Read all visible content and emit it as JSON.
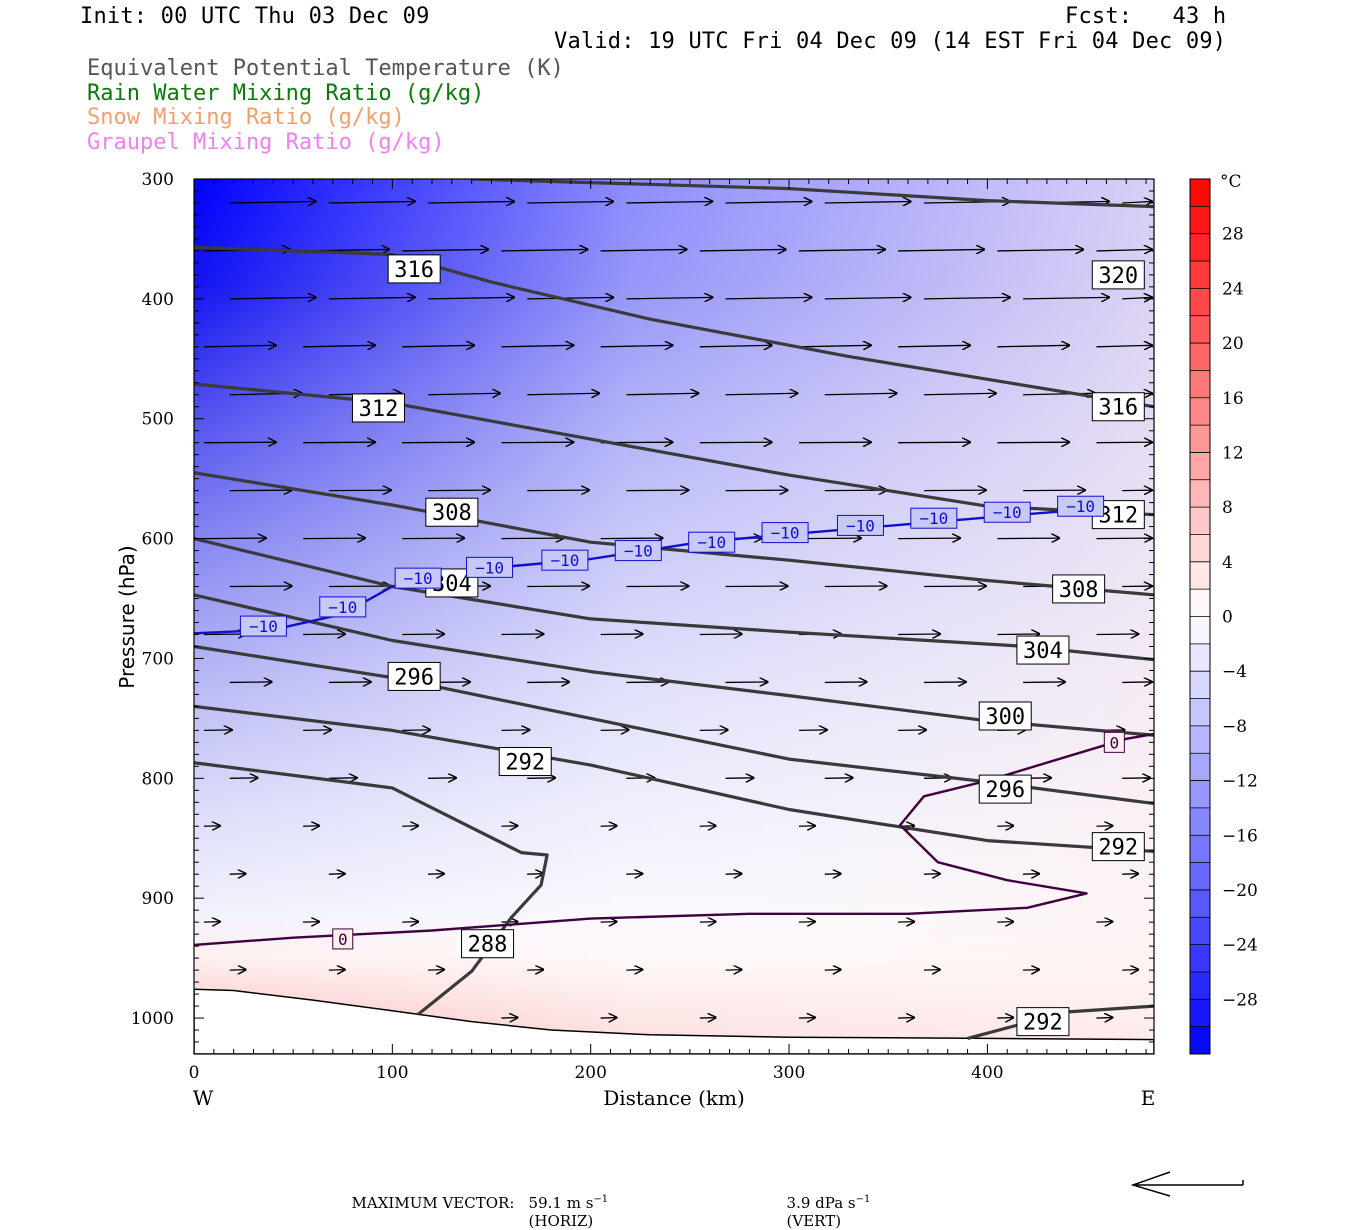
{
  "header": {
    "init": "Init: 00 UTC Thu 03 Dec 09",
    "fcst": "Fcst:   43 h",
    "valid": "Valid: 19 UTC Fri 04 Dec 09 (14 EST Fri 04 Dec 09)"
  },
  "legend": [
    {
      "label": "Equivalent Potential Temperature (K)",
      "color": "#555555"
    },
    {
      "label": "Rain Water Mixing Ratio (g/kg)",
      "color": "#0a7a0a"
    },
    {
      "label": "Snow Mixing Ratio (g/kg)",
      "color": "#f0a070"
    },
    {
      "label": "Graupel Mixing Ratio (g/kg)",
      "color": "#ee82ee"
    }
  ],
  "chart_data": {
    "type": "cross-section contour",
    "xlabel": "Distance (km)",
    "ylabel": "Pressure (hPa)",
    "xlim": [
      0,
      484
    ],
    "ylim": [
      300,
      1030
    ],
    "x_ticks": [
      0,
      100,
      200,
      300,
      400
    ],
    "y_ticks": [
      300,
      400,
      500,
      600,
      700,
      800,
      900,
      1000
    ],
    "x_end_labels": {
      "left": "W",
      "right": "E"
    },
    "colorbar": {
      "unit": "°C",
      "tick_labels": [
        "28",
        "24",
        "20",
        "16",
        "12",
        "8",
        "4",
        "0",
        "−4",
        "−8",
        "−12",
        "−16",
        "−20",
        "−24",
        "−28"
      ],
      "tick_values": [
        28,
        24,
        20,
        16,
        12,
        8,
        4,
        0,
        -4,
        -8,
        -12,
        -16,
        -20,
        -24,
        -28
      ],
      "range": [
        -32,
        32
      ]
    },
    "theta_e_contours": [
      {
        "label": "320",
        "points": [
          [
            140,
            300
          ],
          [
            300,
            308
          ],
          [
            400,
            318
          ],
          [
            484,
            323
          ]
        ]
      },
      {
        "label": "316",
        "points": [
          [
            0,
            357
          ],
          [
            100,
            363
          ],
          [
            150,
            386
          ],
          [
            230,
            417
          ],
          [
            330,
            448
          ],
          [
            484,
            490
          ]
        ]
      },
      {
        "label": "312",
        "points": [
          [
            0,
            471
          ],
          [
            100,
            487
          ],
          [
            200,
            517
          ],
          [
            300,
            547
          ],
          [
            400,
            573
          ],
          [
            484,
            580
          ]
        ]
      },
      {
        "label": "308",
        "points": [
          [
            0,
            545
          ],
          [
            100,
            572
          ],
          [
            200,
            603
          ],
          [
            300,
            618
          ],
          [
            400,
            635
          ],
          [
            484,
            647
          ]
        ]
      },
      {
        "label": "304",
        "points": [
          [
            0,
            600
          ],
          [
            100,
            640
          ],
          [
            200,
            667
          ],
          [
            300,
            678
          ],
          [
            420,
            690
          ],
          [
            484,
            701
          ]
        ]
      },
      {
        "label": "300",
        "points": [
          [
            0,
            647
          ],
          [
            100,
            685
          ],
          [
            200,
            711
          ],
          [
            300,
            731
          ],
          [
            400,
            752
          ],
          [
            484,
            764
          ]
        ]
      },
      {
        "label": "296",
        "points": [
          [
            0,
            690
          ],
          [
            100,
            716
          ],
          [
            200,
            750
          ],
          [
            300,
            784
          ],
          [
            400,
            803
          ],
          [
            484,
            821
          ]
        ]
      },
      {
        "label": "292",
        "points": [
          [
            0,
            740
          ],
          [
            100,
            760
          ],
          [
            200,
            789
          ],
          [
            300,
            826
          ],
          [
            400,
            852
          ],
          [
            484,
            861
          ]
        ]
      },
      {
        "label": "288",
        "points": [
          [
            0,
            787
          ],
          [
            100,
            808
          ],
          [
            165,
            862
          ],
          [
            178,
            864
          ],
          [
            175,
            889
          ],
          [
            160,
            916
          ],
          [
            140,
            961
          ],
          [
            113,
            997
          ]
        ]
      },
      {
        "label": "292",
        "points": [
          [
            390,
            1017
          ],
          [
            440,
            995
          ],
          [
            484,
            990
          ]
        ]
      }
    ],
    "theta_e_label_positions": [
      {
        "label": "320",
        "x": 466,
        "y": 380
      },
      {
        "label": "316",
        "x": 111,
        "y": 375
      },
      {
        "label": "316",
        "x": 466,
        "y": 490
      },
      {
        "label": "312",
        "x": 93,
        "y": 491
      },
      {
        "label": "312",
        "x": 466,
        "y": 580
      },
      {
        "label": "308",
        "x": 130,
        "y": 578
      },
      {
        "label": "308",
        "x": 446,
        "y": 642
      },
      {
        "label": "304",
        "x": 130,
        "y": 637
      },
      {
        "label": "304",
        "x": 428,
        "y": 693
      },
      {
        "label": "300",
        "x": 409,
        "y": 748
      },
      {
        "label": "296",
        "x": 111,
        "y": 715
      },
      {
        "label": "296",
        "x": 409,
        "y": 809
      },
      {
        "label": "292",
        "x": 167,
        "y": 786
      },
      {
        "label": "292",
        "x": 466,
        "y": 857
      },
      {
        "label": "292",
        "x": 428,
        "y": 1003
      },
      {
        "label": "288",
        "x": 148,
        "y": 938
      }
    ],
    "isotherms": [
      {
        "label": "−10",
        "color": "#1010cc",
        "points": [
          [
            0,
            679
          ],
          [
            40,
            676
          ],
          [
            75,
            663
          ],
          [
            100,
            640
          ],
          [
            140,
            626
          ],
          [
            200,
            617
          ],
          [
            255,
            603
          ],
          [
            310,
            595
          ],
          [
            360,
            588
          ],
          [
            410,
            581
          ],
          [
            470,
            573
          ]
        ]
      },
      {
        "label": "0",
        "color": "#400040",
        "points": [
          [
            0,
            939
          ],
          [
            50,
            933
          ],
          [
            120,
            927
          ],
          [
            200,
            917
          ],
          [
            280,
            913
          ],
          [
            360,
            913
          ],
          [
            420,
            908
          ],
          [
            450,
            896
          ],
          [
            410,
            885
          ],
          [
            375,
            870
          ],
          [
            356,
            839
          ],
          [
            368,
            815
          ],
          [
            400,
            802
          ],
          [
            440,
            782
          ],
          [
            470,
            767
          ],
          [
            484,
            763
          ]
        ]
      }
    ],
    "isotherm_label_positions": [
      {
        "label": "−10",
        "x": 35,
        "y": 673
      },
      {
        "label": "−10",
        "x": 75,
        "y": 657
      },
      {
        "label": "−10",
        "x": 113,
        "y": 633
      },
      {
        "label": "−10",
        "x": 149,
        "y": 624
      },
      {
        "label": "−10",
        "x": 187,
        "y": 618
      },
      {
        "label": "−10",
        "x": 224,
        "y": 610
      },
      {
        "label": "−10",
        "x": 261,
        "y": 603
      },
      {
        "label": "−10",
        "x": 298,
        "y": 595
      },
      {
        "label": "−10",
        "x": 336,
        "y": 589
      },
      {
        "label": "−10",
        "x": 373,
        "y": 583
      },
      {
        "label": "−10",
        "x": 410,
        "y": 578
      },
      {
        "label": "−10",
        "x": 447,
        "y": 573
      },
      {
        "label": "0",
        "x": 75,
        "y": 934
      },
      {
        "label": "0",
        "x": 464,
        "y": 770
      }
    ],
    "terrain": [
      [
        0,
        976
      ],
      [
        20,
        977
      ],
      [
        60,
        985
      ],
      [
        100,
        994
      ],
      [
        140,
        1003
      ],
      [
        180,
        1010
      ],
      [
        230,
        1014
      ],
      [
        300,
        1016
      ],
      [
        400,
        1017
      ],
      [
        484,
        1018
      ]
    ],
    "wind_vector_reference": {
      "horizontal": "59.1 m s⁻¹ (HORIZ)",
      "vertical": "3.9 dPa s⁻¹ (VERT)"
    }
  },
  "footer": {
    "prefix": "MAXIMUM VECTOR:",
    "horiz_value": "59.1 m s",
    "horiz_exp": "−1",
    "horiz_unit": "(HORIZ)",
    "vert_value": "3.9 dPa s",
    "vert_exp": "−1",
    "vert_unit": "(VERT)"
  }
}
